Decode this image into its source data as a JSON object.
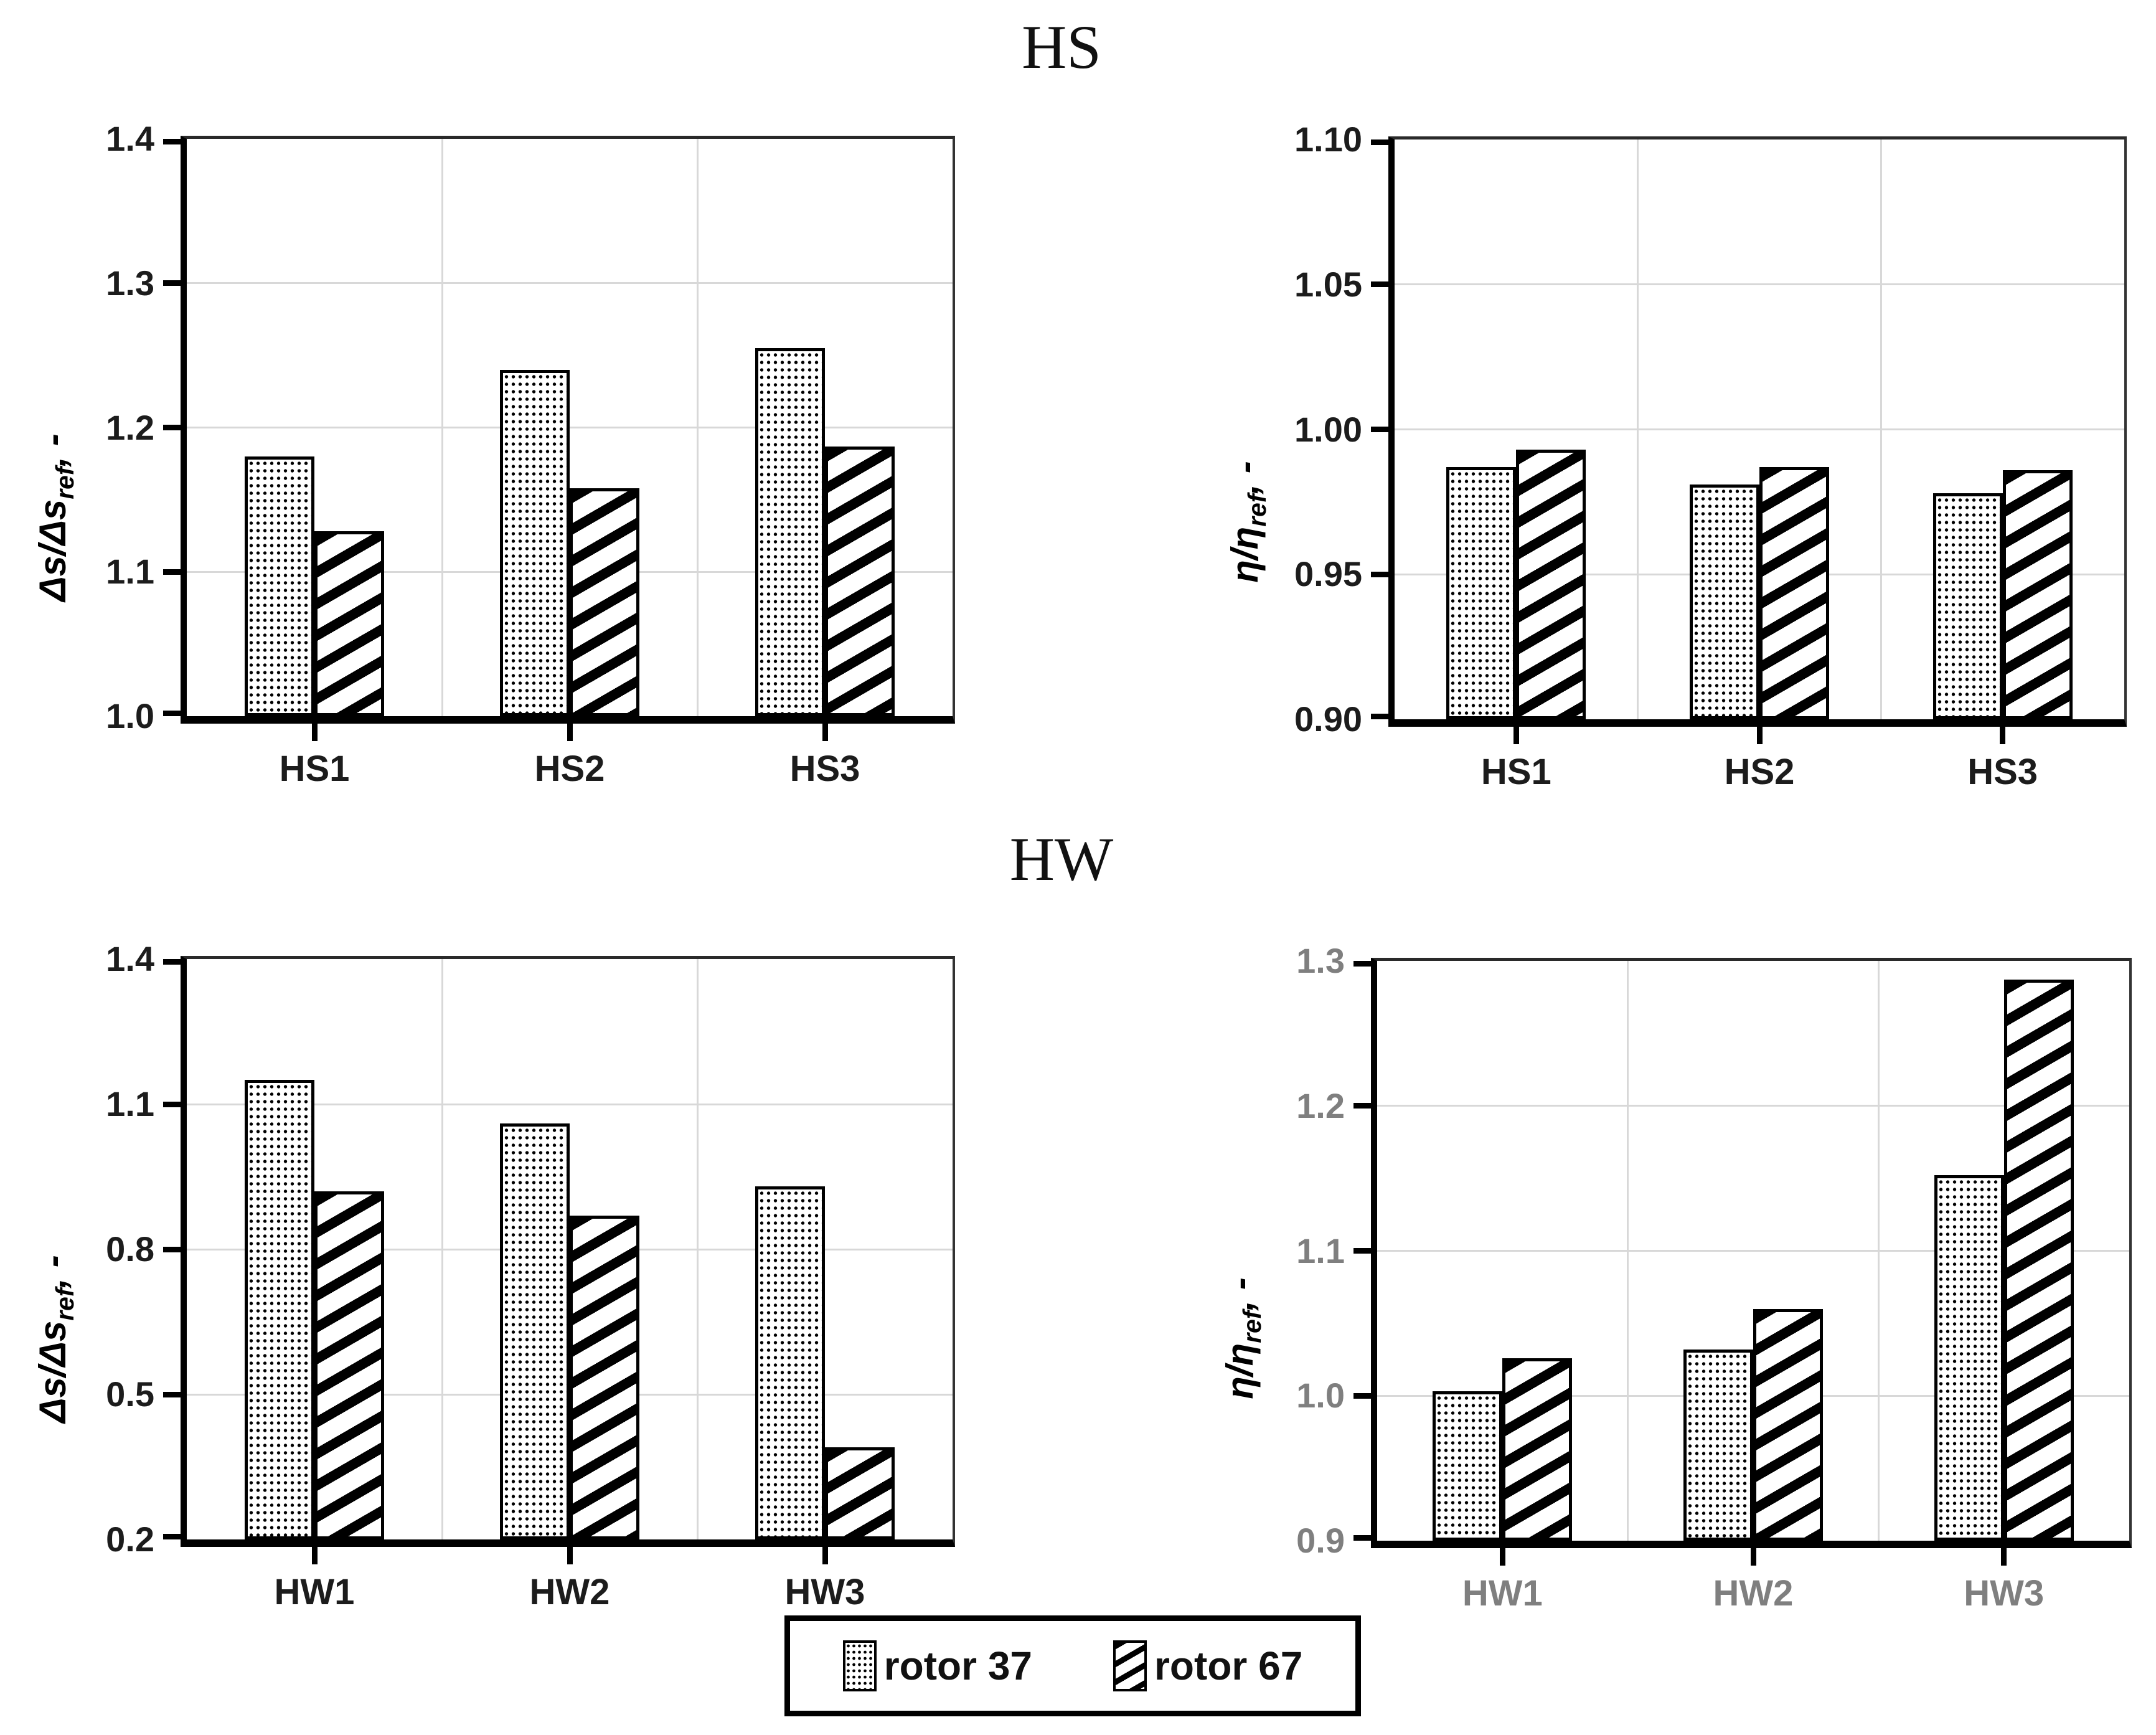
{
  "page": {
    "titles": {
      "top": "HS",
      "bottom": "HW"
    }
  },
  "colors": {
    "background": "#ffffff",
    "bar_fill": "#ffffff",
    "bar_outline": "#000000",
    "gridline": "#d8d8d8",
    "text_dark": "#1c1c1c",
    "text_gray": "#7f7f7f"
  },
  "legend": {
    "items": [
      {
        "label": "rotor 37",
        "pattern": "dots"
      },
      {
        "label": "rotor 67",
        "pattern": "hatch"
      }
    ]
  },
  "chart_data": [
    {
      "id": "hs-entropy",
      "panel_title": "HS",
      "type": "bar",
      "categories": [
        "HS1",
        "HS2",
        "HS3"
      ],
      "series": [
        {
          "name": "rotor 37",
          "pattern": "dots",
          "values": [
            1.18,
            1.24,
            1.255
          ]
        },
        {
          "name": "rotor 67",
          "pattern": "hatch",
          "values": [
            1.128,
            1.158,
            1.187
          ]
        }
      ],
      "ylabel": {
        "main": "Δs/Δs",
        "sub": "ref",
        "suffix": ", -"
      },
      "ylim": [
        1.0,
        1.4
      ],
      "ytick_labels": [
        "1.0",
        "1.1",
        "1.2",
        "1.3",
        "1.4"
      ],
      "grid": true,
      "tick_label_color": "dark"
    },
    {
      "id": "hs-efficiency",
      "panel_title": "HS",
      "type": "bar",
      "categories": [
        "HS1",
        "HS2",
        "HS3"
      ],
      "series": [
        {
          "name": "rotor 37",
          "pattern": "dots",
          "values": [
            0.987,
            0.981,
            0.978
          ]
        },
        {
          "name": "rotor 67",
          "pattern": "hatch",
          "values": [
            0.993,
            0.987,
            0.986
          ]
        }
      ],
      "ylabel": {
        "main": "η/η",
        "sub": "ref",
        "suffix": ", -"
      },
      "ylim": [
        0.9,
        1.1
      ],
      "ytick_labels": [
        "0.90",
        "0.95",
        "1.00",
        "1.05",
        "1.10"
      ],
      "grid": true,
      "tick_label_color": "dark"
    },
    {
      "id": "hw-entropy",
      "panel_title": "HW",
      "type": "bar",
      "categories": [
        "HW1",
        "HW2",
        "HW3"
      ],
      "series": [
        {
          "name": "rotor 37",
          "pattern": "dots",
          "values": [
            1.15,
            1.06,
            0.93
          ]
        },
        {
          "name": "rotor 67",
          "pattern": "hatch",
          "values": [
            0.92,
            0.87,
            0.39
          ]
        }
      ],
      "ylabel": {
        "main": "Δs/Δs",
        "sub": "ref",
        "suffix": ", -"
      },
      "ylim": [
        0.2,
        1.4
      ],
      "ytick_labels": [
        "0.2",
        "0.5",
        "0.8",
        "1.1",
        "1.4"
      ],
      "grid": true,
      "tick_label_color": "dark"
    },
    {
      "id": "hw-efficiency",
      "panel_title": "HW",
      "type": "bar",
      "categories": [
        "HW1",
        "HW2",
        "HW3"
      ],
      "series": [
        {
          "name": "rotor 37",
          "pattern": "dots",
          "values": [
            1.003,
            1.032,
            1.152
          ]
        },
        {
          "name": "rotor 67",
          "pattern": "hatch",
          "values": [
            1.026,
            1.06,
            1.287
          ]
        }
      ],
      "ylabel": {
        "main": "η/η",
        "sub": "ref",
        "suffix": ", -"
      },
      "ylim": [
        0.9,
        1.3
      ],
      "ytick_labels": [
        "0.9",
        "1.0",
        "1.1",
        "1.2",
        "1.3"
      ],
      "grid": true,
      "tick_label_color": "gray"
    }
  ]
}
